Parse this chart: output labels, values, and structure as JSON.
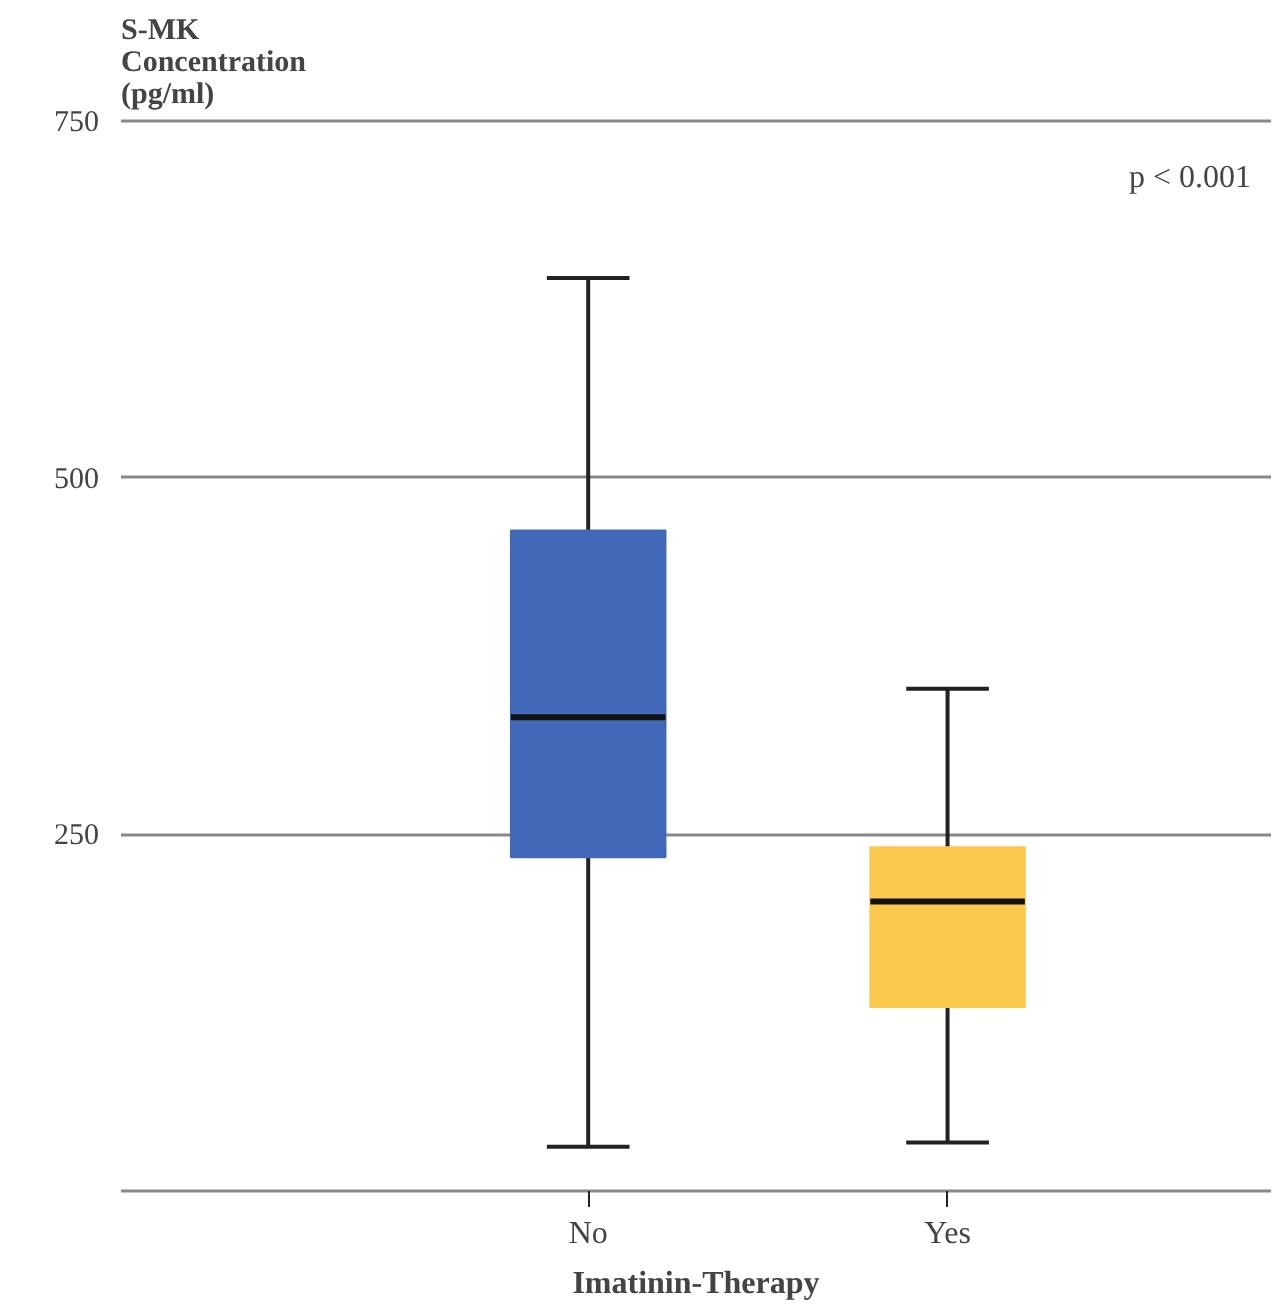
{
  "chart_data": {
    "type": "box",
    "ylabel": "S-MK Concentration (pg/ml)",
    "xlabel": "Imatinin-Therapy",
    "categories": [
      "No",
      "Yes"
    ],
    "colors": [
      "#4169b8",
      "#fcc94f"
    ],
    "boxes": [
      {
        "low": 31,
        "q1": 234,
        "median": 332,
        "q3": 463,
        "high": 640
      },
      {
        "low": 34,
        "q1": 129,
        "median": 203,
        "q3": 241,
        "high": 352
      }
    ],
    "ylim": [
      0,
      750
    ],
    "yticks": [
      250,
      500,
      750
    ],
    "grid": "y",
    "annotations": [
      "p < 0.001"
    ]
  }
}
